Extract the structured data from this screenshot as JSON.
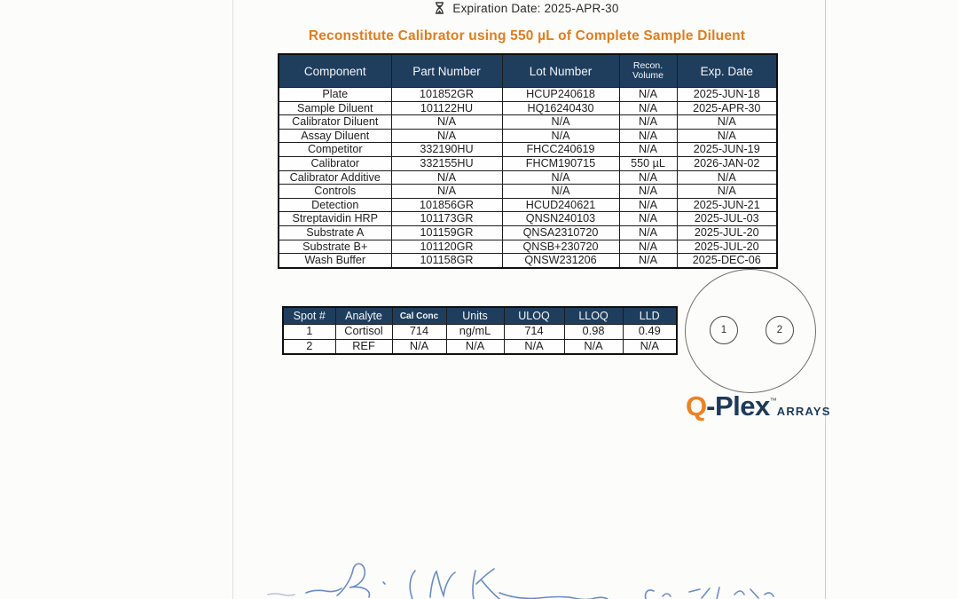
{
  "top": {
    "expiration_label": "Expiration Date: 2025-APR-30",
    "expiration_icon": "hourglass-icon",
    "heading": "Reconstitute Calibrator using 550 µL of Complete Sample Diluent"
  },
  "components_table": {
    "headers": [
      "Component",
      "Part Number",
      "Lot Number",
      "Recon. Volume",
      "Exp. Date"
    ],
    "rows": [
      [
        "Plate",
        "101852GR",
        "HCUP240618",
        "N/A",
        "2025-JUN-18"
      ],
      [
        "Sample Diluent",
        "101122HU",
        "HQ16240430",
        "N/A",
        "2025-APR-30"
      ],
      [
        "Calibrator Diluent",
        "N/A",
        "N/A",
        "N/A",
        "N/A"
      ],
      [
        "Assay Diluent",
        "N/A",
        "N/A",
        "N/A",
        "N/A"
      ],
      [
        "Competitor",
        "332190HU",
        "FHCC240619",
        "N/A",
        "2025-JUN-19"
      ],
      [
        "Calibrator",
        "332155HU",
        "FHCM190715",
        "550 µL",
        "2026-JAN-02"
      ],
      [
        "Calibrator Additive",
        "N/A",
        "N/A",
        "N/A",
        "N/A"
      ],
      [
        "Controls",
        "N/A",
        "N/A",
        "N/A",
        "N/A"
      ],
      [
        "Detection",
        "101856GR",
        "HCUD240621",
        "N/A",
        "2025-JUN-21"
      ],
      [
        "Streptavidin HRP",
        "101173GR",
        "QNSN240103",
        "N/A",
        "2025-JUL-03"
      ],
      [
        "Substrate A",
        "101159GR",
        "QNSA2310720",
        "N/A",
        "2025-JUL-20"
      ],
      [
        "Substrate B+",
        "101120GR",
        "QNSB+230720",
        "N/A",
        "2025-JUL-20"
      ],
      [
        "Wash Buffer",
        "101158GR",
        "QNSW231206",
        "N/A",
        "2025-DEC-06"
      ]
    ]
  },
  "analytes_table": {
    "headers": [
      "Spot #",
      "Analyte",
      "Cal Conc",
      "Units",
      "ULOQ",
      "LLOQ",
      "LLD"
    ],
    "rows": [
      [
        "1",
        "Cortisol",
        "714",
        "ng/mL",
        "714",
        "0.98",
        "0.49"
      ],
      [
        "2",
        "REF",
        "N/A",
        "N/A",
        "N/A",
        "N/A",
        "N/A"
      ]
    ]
  },
  "well_diagram": {
    "spots": [
      "1",
      "2"
    ]
  },
  "logo": {
    "q": "Q",
    "plex": "-Plex",
    "tm": "™",
    "arrays": "ARRAYS"
  },
  "signature": {
    "description": "handwritten-blue-signature-and-date"
  },
  "colors": {
    "header_bg": "#1f3e5e",
    "table_border": "#1c1c1c",
    "accent_orange": "#e07d1d",
    "logo_navy": "#1d3a5a",
    "logo_orange": "#ee8122",
    "signature_blue": "#4f78c0",
    "paper": "#fcfcfa",
    "edge_line": "#c9c9c2"
  }
}
